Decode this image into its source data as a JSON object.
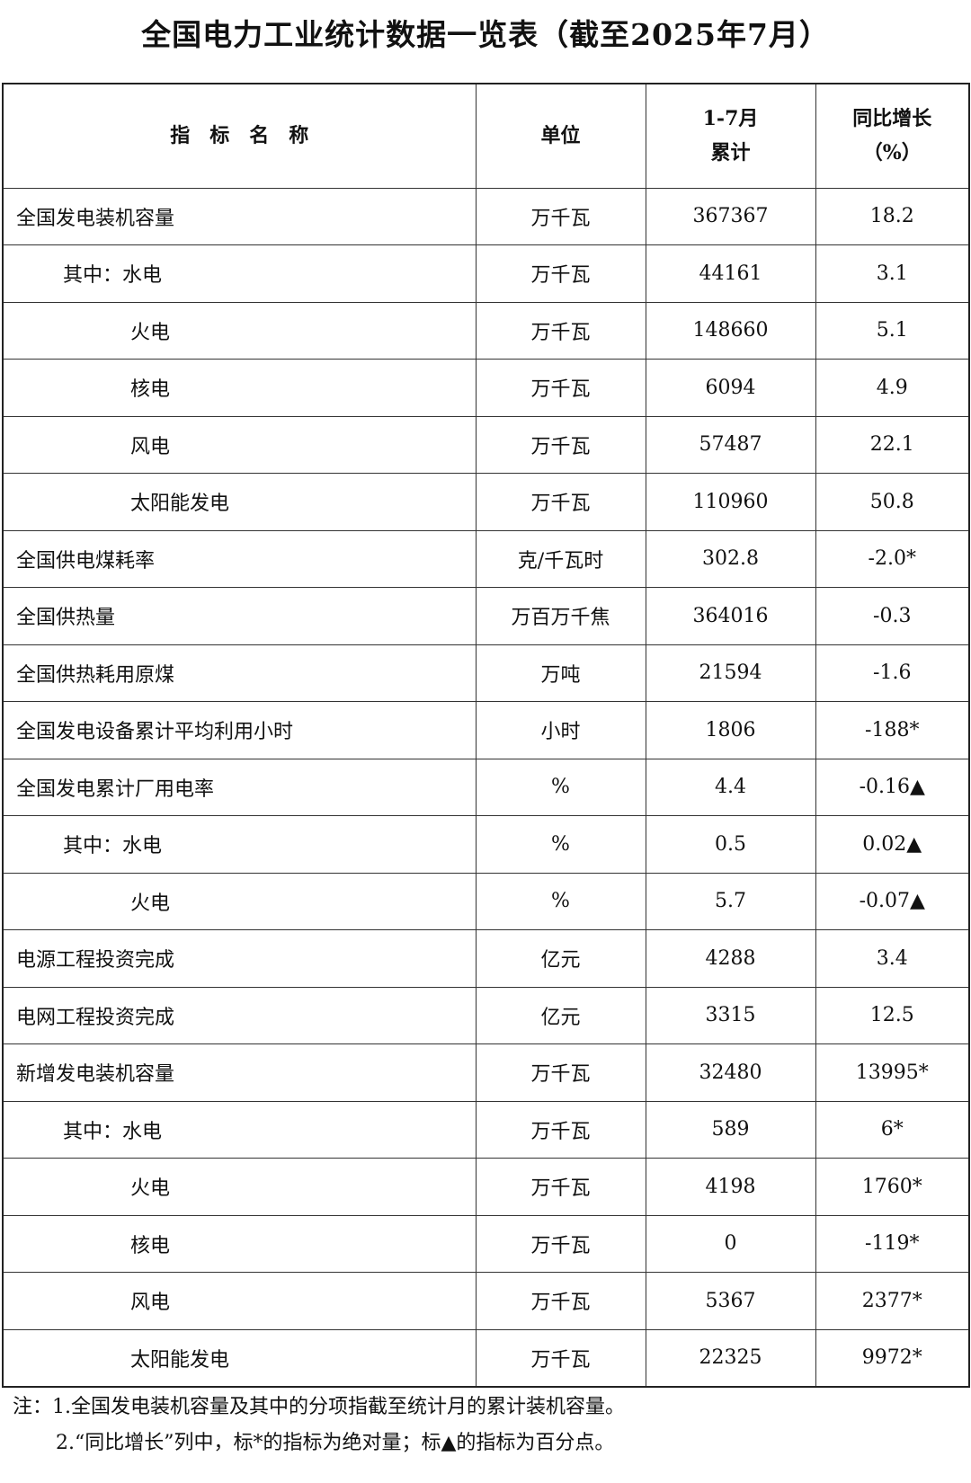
{
  "title": "全国电力工业统计数据一览表（截至2025年7月）",
  "headers": {
    "name": "指　标　名　称",
    "unit": "单位",
    "cumulative_line1": "1-7月",
    "cumulative_line2": "累计",
    "growth_line1": "同比增长",
    "growth_line2": "（%）"
  },
  "rows": [
    {
      "name": "全国发电装机容量",
      "level": 0,
      "unit": "万千瓦",
      "value": "367367",
      "growth": "18.2"
    },
    {
      "name": "其中：水电",
      "level": 1,
      "unit": "万千瓦",
      "value": "44161",
      "growth": "3.1"
    },
    {
      "name": "火电",
      "level": 2,
      "unit": "万千瓦",
      "value": "148660",
      "growth": "5.1"
    },
    {
      "name": "核电",
      "level": 2,
      "unit": "万千瓦",
      "value": "6094",
      "growth": "4.9"
    },
    {
      "name": "风电",
      "level": 2,
      "unit": "万千瓦",
      "value": "57487",
      "growth": "22.1"
    },
    {
      "name": "太阳能发电",
      "level": 2,
      "unit": "万千瓦",
      "value": "110960",
      "growth": "50.8"
    },
    {
      "name": "全国供电煤耗率",
      "level": 0,
      "unit": "克/千瓦时",
      "value": "302.8",
      "growth": "-2.0*"
    },
    {
      "name": "全国供热量",
      "level": 0,
      "unit": "万百万千焦",
      "value": "364016",
      "growth": "-0.3"
    },
    {
      "name": "全国供热耗用原煤",
      "level": 0,
      "unit": "万吨",
      "value": "21594",
      "growth": "-1.6"
    },
    {
      "name": "全国发电设备累计平均利用小时",
      "level": 0,
      "unit": "小时",
      "value": "1806",
      "growth": "-188*"
    },
    {
      "name": "全国发电累计厂用电率",
      "level": 0,
      "unit": "%",
      "value": "4.4",
      "growth": "-0.16▲"
    },
    {
      "name": "其中：水电",
      "level": 1,
      "unit": "%",
      "value": "0.5",
      "growth": "0.02▲"
    },
    {
      "name": "火电",
      "level": 2,
      "unit": "%",
      "value": "5.7",
      "growth": "-0.07▲"
    },
    {
      "name": "电源工程投资完成",
      "level": 0,
      "unit": "亿元",
      "value": "4288",
      "growth": "3.4"
    },
    {
      "name": "电网工程投资完成",
      "level": 0,
      "unit": "亿元",
      "value": "3315",
      "growth": "12.5"
    },
    {
      "name": "新增发电装机容量",
      "level": 0,
      "unit": "万千瓦",
      "value": "32480",
      "growth": "13995*"
    },
    {
      "name": "其中：水电",
      "level": 1,
      "unit": "万千瓦",
      "value": "589",
      "growth": "6*"
    },
    {
      "name": "火电",
      "level": 2,
      "unit": "万千瓦",
      "value": "4198",
      "growth": "1760*"
    },
    {
      "name": "核电",
      "level": 2,
      "unit": "万千瓦",
      "value": "0",
      "growth": "-119*"
    },
    {
      "name": "风电",
      "level": 2,
      "unit": "万千瓦",
      "value": "5367",
      "growth": "2377*"
    },
    {
      "name": "太阳能发电",
      "level": 2,
      "unit": "万千瓦",
      "value": "22325",
      "growth": "9972*"
    }
  ],
  "notes": [
    "注：1.全国发电装机容量及其中的分项指截至统计月的累计装机容量。",
    "2.“同比增长”列中，标*的指标为绝对量；标▲的指标为百分点。"
  ]
}
